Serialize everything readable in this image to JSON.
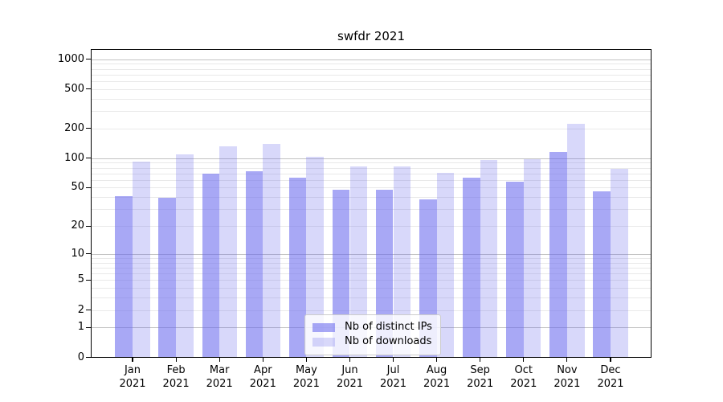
{
  "title": "swfdr 2021",
  "legend": {
    "items": [
      {
        "label": "Nb of distinct IPs",
        "color": "rgba(105,105,237,0.58)"
      },
      {
        "label": "Nb of downloads",
        "color": "rgba(105,105,237,0.26)"
      }
    ]
  },
  "colors": {
    "bar_distinct_ips": "rgba(105,105,237,0.58)",
    "bar_downloads": "rgba(105,105,237,0.26)",
    "grid_major": "#c2c2c2",
    "grid_minor": "#e9e9e9",
    "axis": "#000000",
    "background": "#ffffff"
  },
  "chart_data": {
    "type": "bar",
    "title": "swfdr 2021",
    "categories": [
      "Jan 2021",
      "Feb 2021",
      "Mar 2021",
      "Apr 2021",
      "May 2021",
      "Jun 2021",
      "Jul 2021",
      "Aug 2021",
      "Sep 2021",
      "Oct 2021",
      "Nov 2021",
      "Dec 2021"
    ],
    "series": [
      {
        "name": "Nb of distinct IPs",
        "values": [
          41,
          40,
          70,
          74,
          64,
          48,
          48,
          38,
          64,
          58,
          118,
          46
        ]
      },
      {
        "name": "Nb of downloads",
        "values": [
          93,
          110,
          133,
          142,
          104,
          84,
          84,
          72,
          97,
          99,
          224,
          79
        ]
      }
    ],
    "xlabel": "",
    "ylabel": "",
    "yscale": "log1p",
    "yticks": [
      0,
      1,
      2,
      5,
      10,
      20,
      50,
      100,
      200,
      500,
      1000
    ],
    "ylim": [
      0,
      1265
    ],
    "grid": true,
    "legend_position": "lower center"
  }
}
